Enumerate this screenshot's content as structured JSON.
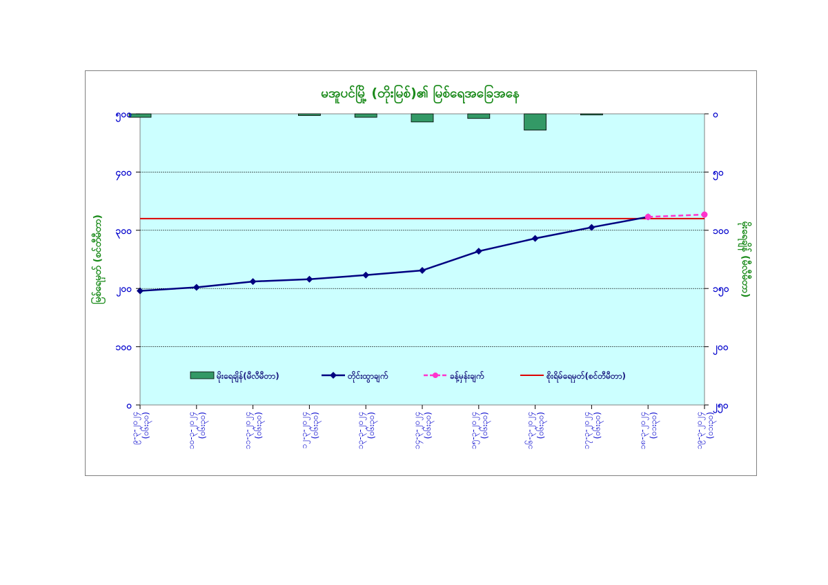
{
  "chart_data": {
    "type": "line",
    "title": "မအူပင်မြို့ (တိုးမြစ်)၏ မြစ်ရေအခြေအနေ",
    "ylabel_left": "မြစ်ရေမှတ် (စင်တီမီတာ)",
    "ylabel_right": "မိုးရေချိန် (မီလီမီတာ)",
    "left_axis": {
      "min": 0,
      "max": 500,
      "reversed": false,
      "ticks": [
        0,
        100,
        200,
        300,
        400,
        500
      ],
      "tick_labels": [
        "၀",
        "၁၀၀",
        "၂၀၀",
        "၃၀၀",
        "၄၀၀",
        "၅၀၀"
      ]
    },
    "right_axis": {
      "min": 0,
      "max": 250,
      "reversed": true,
      "ticks": [
        0,
        50,
        100,
        150,
        200,
        250
      ],
      "tick_labels": [
        "၀",
        "၅၀",
        "၁၀၀",
        "၁၅၀",
        "၂၀၀",
        "၂၅၀"
      ]
    },
    "categories": [
      "၉-၃-၂၀၂၄ (၀၆း၃၀)",
      "၁၀-၃-၂၀၂၄ (၀၆း၃၀)",
      "၁၁-၃-၂၀၂၄ (၀၆း၃၀)",
      "၁၂-၃-၂၀၂၄ (၀၆း၃၀)",
      "၁၃-၃-၂၀၂၄ (၀၆း၃၀)",
      "၁၄-၃-၂၀၂၄ (၀၆း၃၀)",
      "၁၅-၃-၂၀၂၄ (၀၆း၃၀)",
      "၁၆-၃-၂၀၂၄ (၀၆း၃၀)",
      "၁၇-၃-၂၀၂၄ (၀၆း၃၀)",
      "၁၈-၃-၂၀၂၄ (၀၁း၃၀)",
      "၁၉-၃-၂၀၂၄ (၀၁း၃၀)"
    ],
    "series": [
      {
        "name": "မိုးရေချိန်(မီလီမီတာ)",
        "kind": "bar",
        "axis": "right",
        "color": "#339966",
        "values": [
          3,
          0,
          0,
          1.5,
          3,
          7,
          4,
          14,
          1,
          0,
          0
        ]
      },
      {
        "name": "တိုင်းထွာချက်",
        "kind": "line",
        "axis": "left",
        "color": "#000080",
        "marker": "diamond",
        "values": [
          196,
          202,
          212,
          216,
          223,
          231,
          264,
          286,
          305,
          323,
          null
        ]
      },
      {
        "name": "ခန့်မှန်းချက်",
        "kind": "line",
        "dashed": true,
        "axis": "left",
        "color": "#ff33cc",
        "marker": "circle",
        "values": [
          null,
          null,
          null,
          null,
          null,
          null,
          null,
          null,
          null,
          323,
          327
        ]
      },
      {
        "name": "စိုးရိမ်ရေမှတ်(စင်တီမီတာ)",
        "kind": "hline",
        "axis": "left",
        "color": "#dd0000",
        "value": 320
      }
    ],
    "legend_position": "bottom-inside",
    "plot_background": "#ccffff",
    "grid": true
  }
}
